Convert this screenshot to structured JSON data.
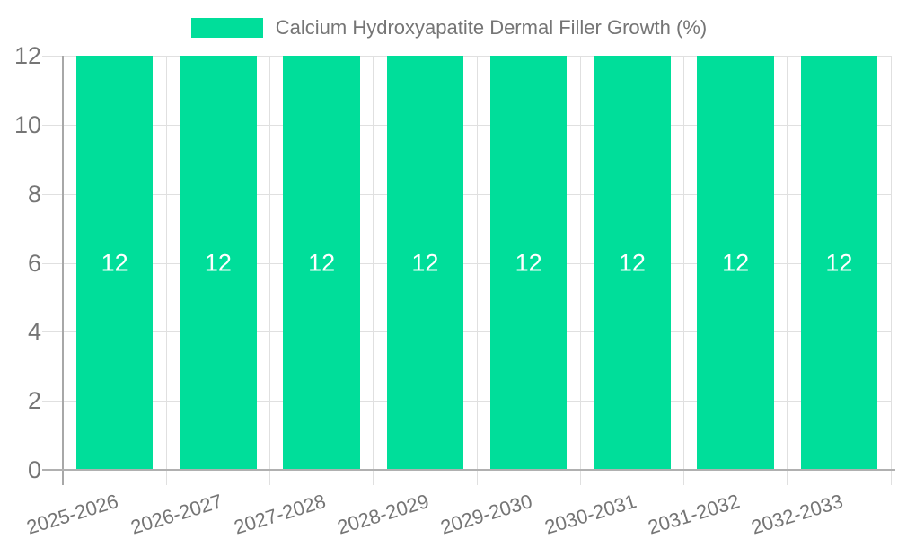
{
  "chart_data": {
    "type": "bar",
    "title": "Calcium Hydroxyapatite Dermal Filler Growth (%)",
    "categories": [
      "2025-2026",
      "2026-2027",
      "2027-2028",
      "2028-2029",
      "2029-2030",
      "2030-2031",
      "2031-2032",
      "2032-2033"
    ],
    "series": [
      {
        "name": "Calcium Hydroxyapatite Dermal Filler Growth (%)",
        "values": [
          12,
          12,
          12,
          12,
          12,
          12,
          12,
          12
        ]
      }
    ],
    "xlabel": "",
    "ylabel": "",
    "ylim": [
      0,
      12
    ],
    "yticks": [
      0,
      2,
      4,
      6,
      8,
      10,
      12
    ],
    "grid": true,
    "legend_position": "top-center",
    "colors": {
      "bar": "#00de9a",
      "bar_value_label": "#ffffff",
      "axis_text": "#757575",
      "gridline": "#e0e0e0",
      "axis_line": "#b0b0b0",
      "background": "#ffffff"
    }
  }
}
